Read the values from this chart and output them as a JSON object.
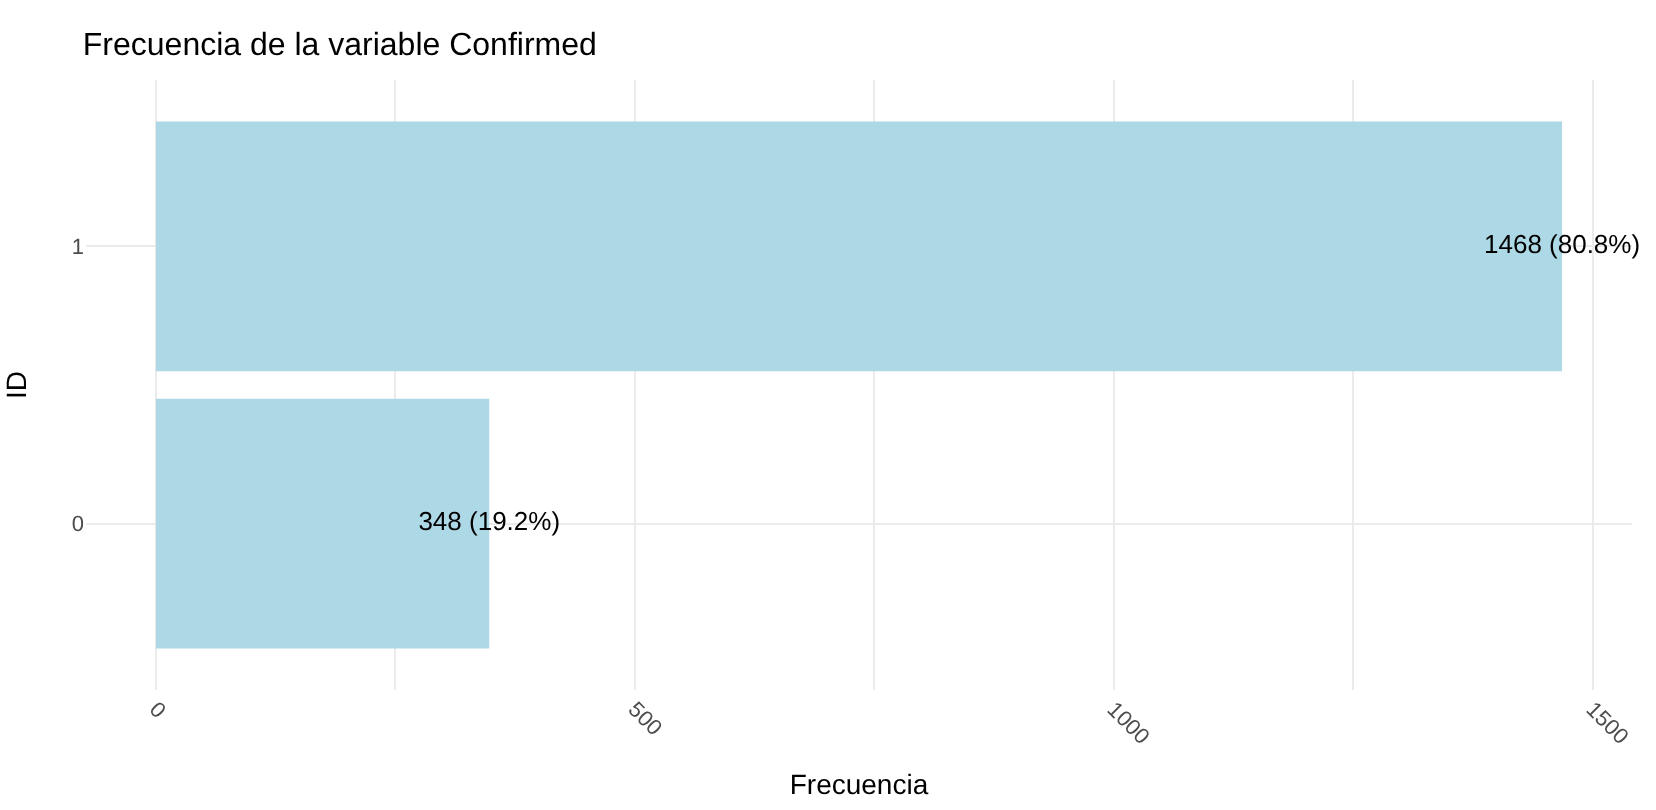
{
  "chart_data": {
    "type": "bar",
    "orientation": "horizontal",
    "title": "Frecuencia de la variable Confirmed",
    "xlabel": "Frecuencia",
    "ylabel": "ID",
    "categories": [
      "1",
      "0"
    ],
    "values": [
      1468,
      348
    ],
    "value_labels": [
      "1468 (80.8%)",
      "348 (19.2%)"
    ],
    "color": "#add8e6",
    "xlim": [
      -73,
      1541
    ],
    "xticks": [
      0,
      {
        "value": 250,
        "label": null
      },
      500,
      {
        "value": 750,
        "label": null
      },
      1000,
      {
        "value": 1250,
        "label": null
      },
      1500
    ],
    "grid": true
  }
}
